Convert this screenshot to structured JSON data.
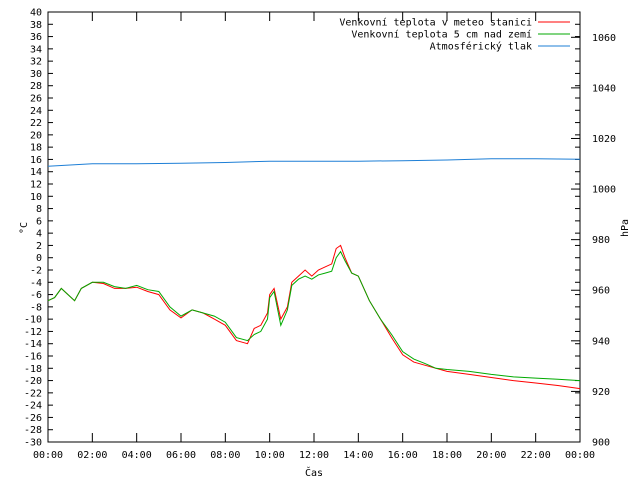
{
  "chart_data": {
    "type": "line",
    "xlabel": "Čas",
    "ylabel_left": "°C",
    "ylabel_right": "hPa",
    "x_ticks": [
      "00:00",
      "02:00",
      "04:00",
      "06:00",
      "08:00",
      "10:00",
      "12:00",
      "14:00",
      "16:00",
      "18:00",
      "20:00",
      "22:00",
      "00:00"
    ],
    "x_range_hours": [
      0,
      24
    ],
    "ylim_left": [
      -30,
      40
    ],
    "y_left_step": 2,
    "ylim_right": [
      900,
      1070
    ],
    "y_right_ticks": [
      900,
      920,
      940,
      960,
      980,
      1000,
      1020,
      1040,
      1060
    ],
    "grid": false,
    "legend_position": "top-right",
    "series": [
      {
        "name": "Venkovní teplota v meteo stanici",
        "color": "#ff0000",
        "axis": "left",
        "x_hours": [
          0,
          0.3,
          0.6,
          0.9,
          1.2,
          1.5,
          2,
          2.5,
          3,
          3.5,
          4,
          4.5,
          5,
          5.5,
          6,
          6.5,
          7,
          7.5,
          8,
          8.5,
          9,
          9.3,
          9.6,
          9.9,
          10,
          10.2,
          10.5,
          10.8,
          11,
          11.3,
          11.6,
          11.9,
          12.2,
          12.5,
          12.8,
          13,
          13.2,
          13.4,
          13.7,
          14,
          14.5,
          15,
          15.5,
          16,
          16.5,
          17,
          17.5,
          18,
          19,
          20,
          21,
          22,
          23,
          24
        ],
        "values": [
          -7,
          -6.5,
          -5,
          -6,
          -7,
          -5,
          -4,
          -4.2,
          -5,
          -5,
          -4.8,
          -5.5,
          -6,
          -8.5,
          -9.8,
          -8.5,
          -9,
          -10,
          -11,
          -13.5,
          -14,
          -11.5,
          -11,
          -9,
          -6,
          -5,
          -10,
          -8,
          -4,
          -3,
          -2,
          -3,
          -2,
          -1.5,
          -1,
          1.5,
          2,
          0,
          -2.5,
          -3,
          -7,
          -10,
          -13,
          -15.8,
          -17,
          -17.5,
          -18,
          -18.5,
          -19,
          -19.5,
          -20,
          -20.4,
          -20.8,
          -21.3
        ]
      },
      {
        "name": "Venkovní teplota 5 cm nad zemí",
        "color": "#00aa00",
        "axis": "left",
        "x_hours": [
          0,
          0.3,
          0.6,
          0.9,
          1.2,
          1.5,
          2,
          2.5,
          3,
          3.5,
          4,
          4.5,
          5,
          5.5,
          6,
          6.5,
          7,
          7.5,
          8,
          8.5,
          9,
          9.3,
          9.6,
          9.9,
          10,
          10.2,
          10.5,
          10.8,
          11,
          11.3,
          11.6,
          11.9,
          12.2,
          12.5,
          12.8,
          13,
          13.2,
          13.4,
          13.7,
          14,
          14.5,
          15,
          15.5,
          16,
          16.5,
          17,
          17.5,
          18,
          19,
          20,
          21,
          22,
          23,
          24
        ],
        "values": [
          -7,
          -6.5,
          -5,
          -6,
          -7,
          -5,
          -4,
          -4,
          -4.7,
          -5,
          -4.5,
          -5.2,
          -5.5,
          -8,
          -9.5,
          -8.5,
          -9,
          -9.5,
          -10.5,
          -13,
          -13.5,
          -12.5,
          -12,
          -10,
          -6.5,
          -5.5,
          -11,
          -8.5,
          -4.5,
          -3.5,
          -3,
          -3.5,
          -2.8,
          -2.5,
          -2.2,
          0,
          1,
          -0.5,
          -2.5,
          -3,
          -7,
          -10,
          -12.5,
          -15.3,
          -16.5,
          -17.2,
          -18,
          -18.2,
          -18.5,
          -19,
          -19.4,
          -19.6,
          -19.8,
          -20
        ]
      },
      {
        "name": "Atmosférický tlak",
        "color": "#1e7fd6",
        "axis": "right",
        "x_hours": [
          0,
          2,
          4,
          6,
          8,
          10,
          12,
          14,
          16,
          18,
          20,
          22,
          24
        ],
        "values": [
          1009,
          1010,
          1010,
          1010.2,
          1010.5,
          1011,
          1011,
          1011,
          1011.2,
          1011.5,
          1012,
          1012,
          1011.8
        ]
      }
    ]
  }
}
